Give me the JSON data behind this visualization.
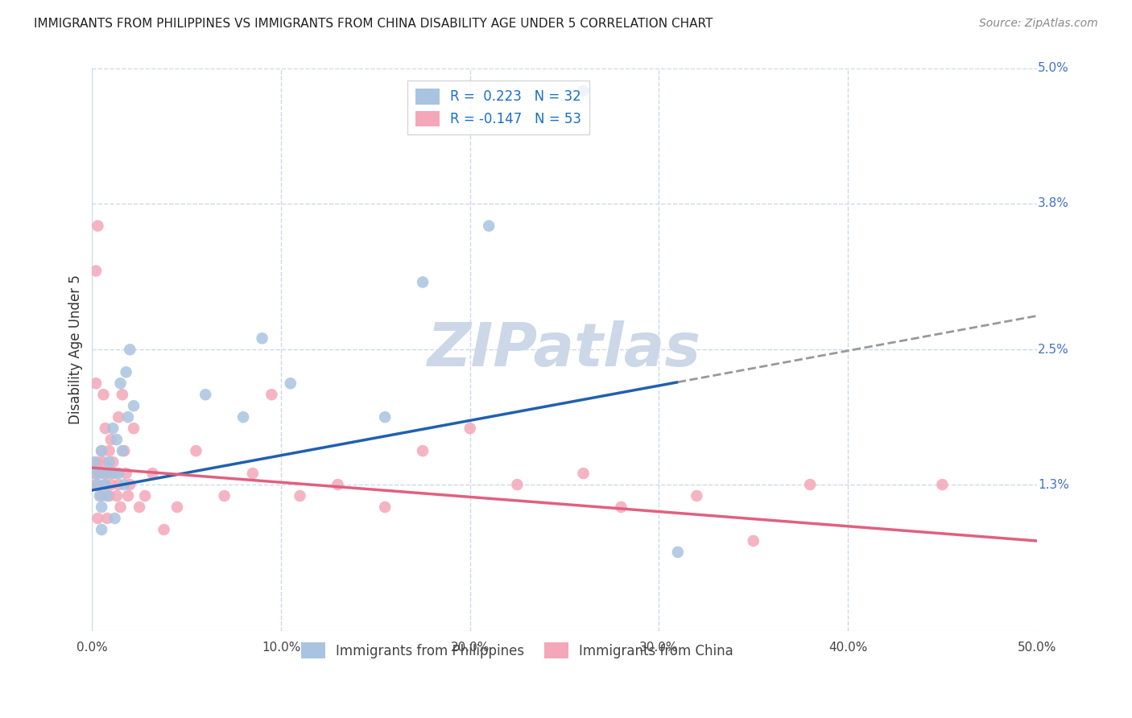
{
  "title": "IMMIGRANTS FROM PHILIPPINES VS IMMIGRANTS FROM CHINA DISABILITY AGE UNDER 5 CORRELATION CHART",
  "source": "Source: ZipAtlas.com",
  "ylabel": "Disability Age Under 5",
  "xlim": [
    0.0,
    0.5
  ],
  "ylim": [
    0.0,
    0.05
  ],
  "ytick_positions": [
    0.013,
    0.025,
    0.038,
    0.05
  ],
  "right_ytick_labels": [
    "1.3%",
    "2.5%",
    "3.8%",
    "5.0%"
  ],
  "philippines_color": "#a8c4e0",
  "china_color": "#f4a7b9",
  "philippines_R": 0.223,
  "philippines_N": 32,
  "china_R": -0.147,
  "china_N": 53,
  "philippines_trend_color": "#2060b0",
  "china_trend_color": "#e06080",
  "watermark": "ZIPatlas",
  "watermark_color": "#ccd8e8",
  "background_color": "#ffffff",
  "grid_color": "#ccd8e8",
  "phil_trend_x0": 0.0,
  "phil_trend_y0": 0.0125,
  "phil_trend_x1": 0.5,
  "phil_trend_y1": 0.028,
  "phil_trend_solid_end": 0.31,
  "china_trend_x0": 0.0,
  "china_trend_y0": 0.0145,
  "china_trend_x1": 0.5,
  "china_trend_y1": 0.008,
  "philippines_x": [
    0.001,
    0.002,
    0.003,
    0.004,
    0.005,
    0.005,
    0.006,
    0.007,
    0.008,
    0.009,
    0.01,
    0.011,
    0.012,
    0.013,
    0.014,
    0.015,
    0.016,
    0.017,
    0.018,
    0.019,
    0.02,
    0.022,
    0.06,
    0.08,
    0.09,
    0.105,
    0.155,
    0.175,
    0.21,
    0.26,
    0.31,
    0.005
  ],
  "philippines_y": [
    0.015,
    0.014,
    0.013,
    0.012,
    0.016,
    0.011,
    0.014,
    0.013,
    0.012,
    0.015,
    0.014,
    0.018,
    0.01,
    0.017,
    0.014,
    0.022,
    0.016,
    0.013,
    0.023,
    0.019,
    0.025,
    0.02,
    0.021,
    0.019,
    0.026,
    0.022,
    0.019,
    0.031,
    0.036,
    0.048,
    0.007,
    0.009
  ],
  "china_x": [
    0.001,
    0.002,
    0.002,
    0.003,
    0.003,
    0.004,
    0.005,
    0.005,
    0.006,
    0.006,
    0.007,
    0.007,
    0.008,
    0.008,
    0.009,
    0.009,
    0.01,
    0.01,
    0.011,
    0.012,
    0.013,
    0.014,
    0.014,
    0.015,
    0.016,
    0.017,
    0.018,
    0.019,
    0.02,
    0.022,
    0.025,
    0.028,
    0.032,
    0.038,
    0.045,
    0.055,
    0.07,
    0.085,
    0.095,
    0.11,
    0.13,
    0.155,
    0.175,
    0.2,
    0.225,
    0.26,
    0.28,
    0.32,
    0.35,
    0.38,
    0.45,
    0.002,
    0.003
  ],
  "china_y": [
    0.014,
    0.013,
    0.022,
    0.015,
    0.01,
    0.014,
    0.016,
    0.012,
    0.015,
    0.021,
    0.013,
    0.018,
    0.014,
    0.01,
    0.016,
    0.012,
    0.017,
    0.013,
    0.015,
    0.014,
    0.012,
    0.013,
    0.019,
    0.011,
    0.021,
    0.016,
    0.014,
    0.012,
    0.013,
    0.018,
    0.011,
    0.012,
    0.014,
    0.009,
    0.011,
    0.016,
    0.012,
    0.014,
    0.021,
    0.012,
    0.013,
    0.011,
    0.016,
    0.018,
    0.013,
    0.014,
    0.011,
    0.012,
    0.008,
    0.013,
    0.013,
    0.032,
    0.036
  ]
}
